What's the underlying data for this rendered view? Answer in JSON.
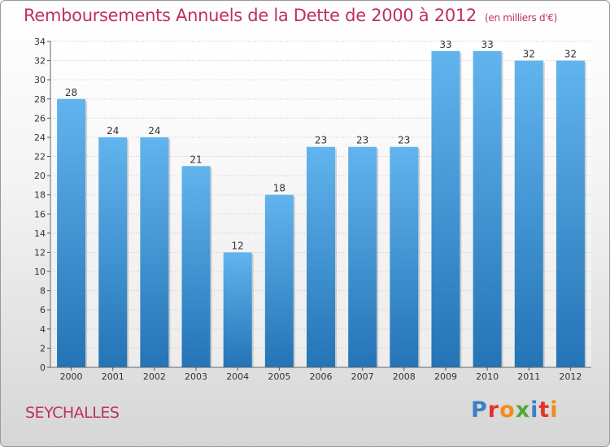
{
  "header": {
    "title": "Remboursements Annuels de la Dette de 2000 à 2012",
    "subtitle": "(en milliers d'€)"
  },
  "footer": {
    "commune": "SEYCHALLES",
    "logo": "Proxiti"
  },
  "colors": {
    "title": "#c0305c",
    "bar_top": "#62b4ee",
    "bar_bottom": "#2474b6",
    "logo_letters": [
      "#3a7fc8",
      "#e3332b",
      "#f28c1e",
      "#55a83a",
      "#3a7fc8",
      "#e3332b",
      "#f28c1e"
    ]
  },
  "chart_data": {
    "type": "bar",
    "title": "Remboursements Annuels de la Dette de 2000 à 2012",
    "categories": [
      "2000",
      "2001",
      "2002",
      "2003",
      "2004",
      "2005",
      "2006",
      "2007",
      "2008",
      "2009",
      "2010",
      "2011",
      "2012"
    ],
    "values": [
      28,
      24,
      24,
      21,
      12,
      18,
      23,
      23,
      23,
      33,
      33,
      32,
      32
    ],
    "xlabel": "",
    "ylabel": "",
    "ylim": [
      0,
      34
    ],
    "yticks": [
      0,
      2,
      4,
      6,
      8,
      10,
      12,
      14,
      16,
      18,
      20,
      22,
      24,
      26,
      28,
      30,
      32,
      34
    ],
    "grid": true,
    "data_labels": true
  }
}
